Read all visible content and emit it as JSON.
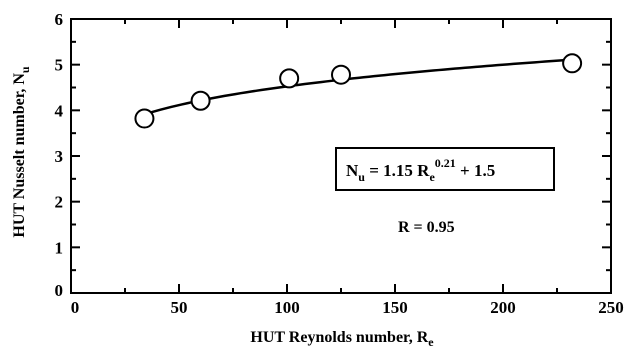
{
  "chart_data": {
    "type": "scatter",
    "xlabel": "HUT Reynolds number, R",
    "xlabel_sub": "e",
    "ylabel": "HUT Nusselt number, N",
    "ylabel_sub": "u",
    "xlim": [
      0,
      250
    ],
    "ylim": [
      0,
      6
    ],
    "xticks": [
      0,
      50,
      100,
      150,
      200,
      250
    ],
    "yticks": [
      0,
      1,
      2,
      3,
      4,
      5,
      6
    ],
    "grid": false,
    "points": {
      "x": [
        34,
        60,
        101,
        125,
        232
      ],
      "y": [
        3.82,
        4.21,
        4.7,
        4.78,
        5.03
      ]
    },
    "fit": {
      "coef": 1.15,
      "exponent": 0.21,
      "intercept": 1.5,
      "x_range": [
        34,
        232
      ],
      "equation": {
        "lhs": "N",
        "lhs_sub": "u",
        "mid": " = 1.15 R",
        "mid_sub": "e",
        "sup": "0.21",
        "tail": " + 1.5"
      }
    },
    "annotation": "R = 0.95"
  }
}
